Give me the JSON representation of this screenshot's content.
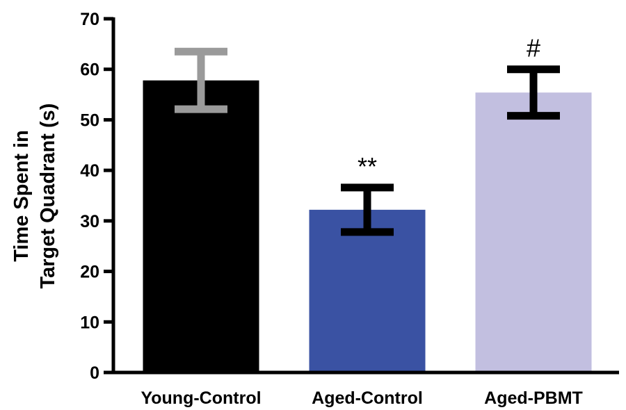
{
  "chart_data": {
    "type": "bar",
    "title": "",
    "xlabel": "",
    "ylabel_lines": [
      "Time Spent in",
      "Target Quadrant (s)"
    ],
    "ylim": [
      0,
      70
    ],
    "yticks": [
      0,
      10,
      20,
      30,
      40,
      50,
      60,
      70
    ],
    "categories": [
      "Young-Control",
      "Aged-Control",
      "Aged-PBMT"
    ],
    "values": [
      57.8,
      32.2,
      55.4
    ],
    "errors": [
      5.7,
      4.4,
      4.6
    ],
    "bar_colors": [
      "#000000",
      "#3a52a3",
      "#c2bfe0"
    ],
    "error_colors": [
      "#9a9a9a",
      "#000000",
      "#000000"
    ],
    "annotations": [
      "",
      "**",
      "#"
    ],
    "grid": false
  }
}
